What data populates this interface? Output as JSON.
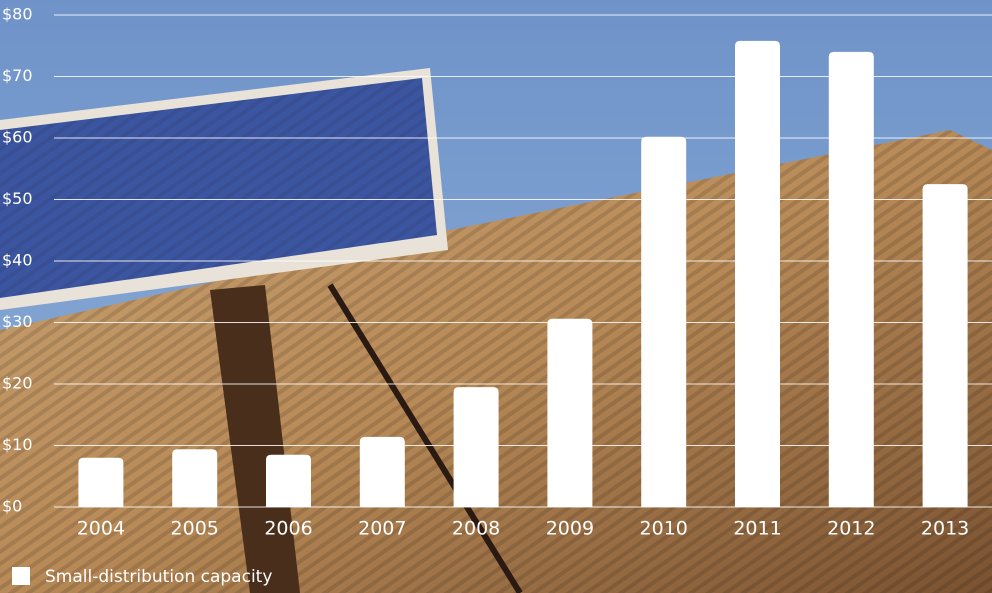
{
  "chart_data": {
    "type": "bar",
    "categories": [
      "2004",
      "2005",
      "2006",
      "2007",
      "2008",
      "2009",
      "2010",
      "2011",
      "2012",
      "2013"
    ],
    "series": [
      {
        "name": "Small-distribution capacity",
        "color": "#ffffff",
        "values": [
          8.0,
          9.4,
          8.5,
          11.4,
          19.5,
          30.6,
          60.2,
          75.8,
          74.0,
          52.5
        ]
      }
    ],
    "ylim": [
      0,
      80
    ],
    "yticks": [
      {
        "value": 0,
        "label": "$0"
      },
      {
        "value": 10,
        "label": "$10"
      },
      {
        "value": 20,
        "label": "$20"
      },
      {
        "value": 30,
        "label": "$30"
      },
      {
        "value": 40,
        "label": "$40"
      },
      {
        "value": 50,
        "label": "$50"
      },
      {
        "value": 60,
        "label": "$60"
      },
      {
        "value": 70,
        "label": "$70"
      },
      {
        "value": 80,
        "label": "$80"
      }
    ],
    "grid": true
  }
}
